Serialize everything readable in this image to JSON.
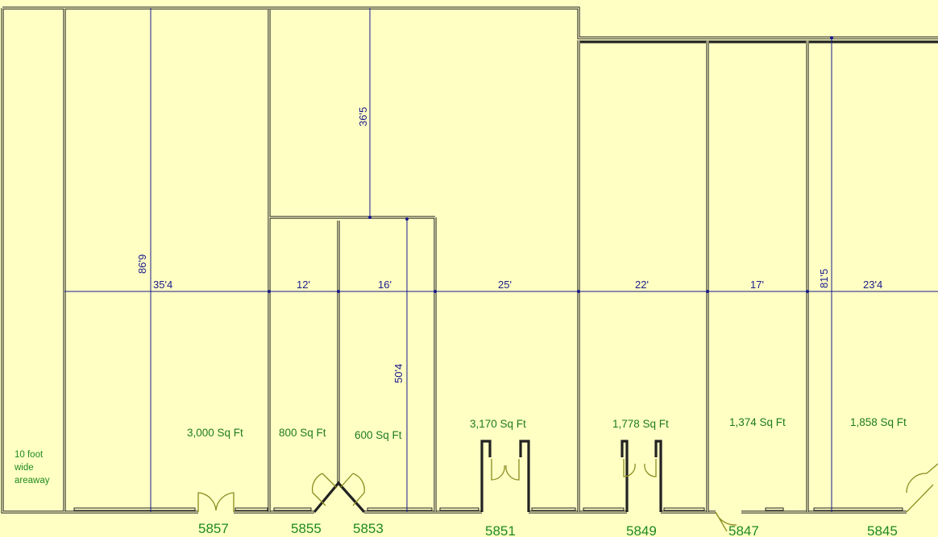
{
  "colors": {
    "background": "#FFFFC4",
    "walls": "#222222",
    "dimensions": "#1A1A8C",
    "labels": "#1E8A1E",
    "doors": "#8C8C20"
  },
  "areaway": {
    "line1": "10 foot",
    "line2": "wide",
    "line3": "areaway"
  },
  "dimensions": {
    "unit_5857_depth": "86'9",
    "unit_5857_width": "35'4",
    "unit_5855_width": "12'",
    "unit_5853_width": "16'",
    "unit_5853_depth": "50'4",
    "rear_room_depth": "36'5",
    "unit_5851_width": "25'",
    "unit_5849_width": "22'",
    "unit_5847_width": "17'",
    "unit_5845_depth": "81'5",
    "unit_5845_width": "23'4"
  },
  "units": [
    {
      "address": "5857",
      "area": "3,000 Sq Ft"
    },
    {
      "address": "5855",
      "area": "800 Sq Ft"
    },
    {
      "address": "5853",
      "area": "600 Sq Ft"
    },
    {
      "address": "5851",
      "area": "3,170 Sq Ft"
    },
    {
      "address": "5849",
      "area": "1,778 Sq Ft"
    },
    {
      "address": "5847",
      "area": "1,374 Sq Ft"
    },
    {
      "address": "5845",
      "area": "1,858 Sq Ft"
    }
  ]
}
